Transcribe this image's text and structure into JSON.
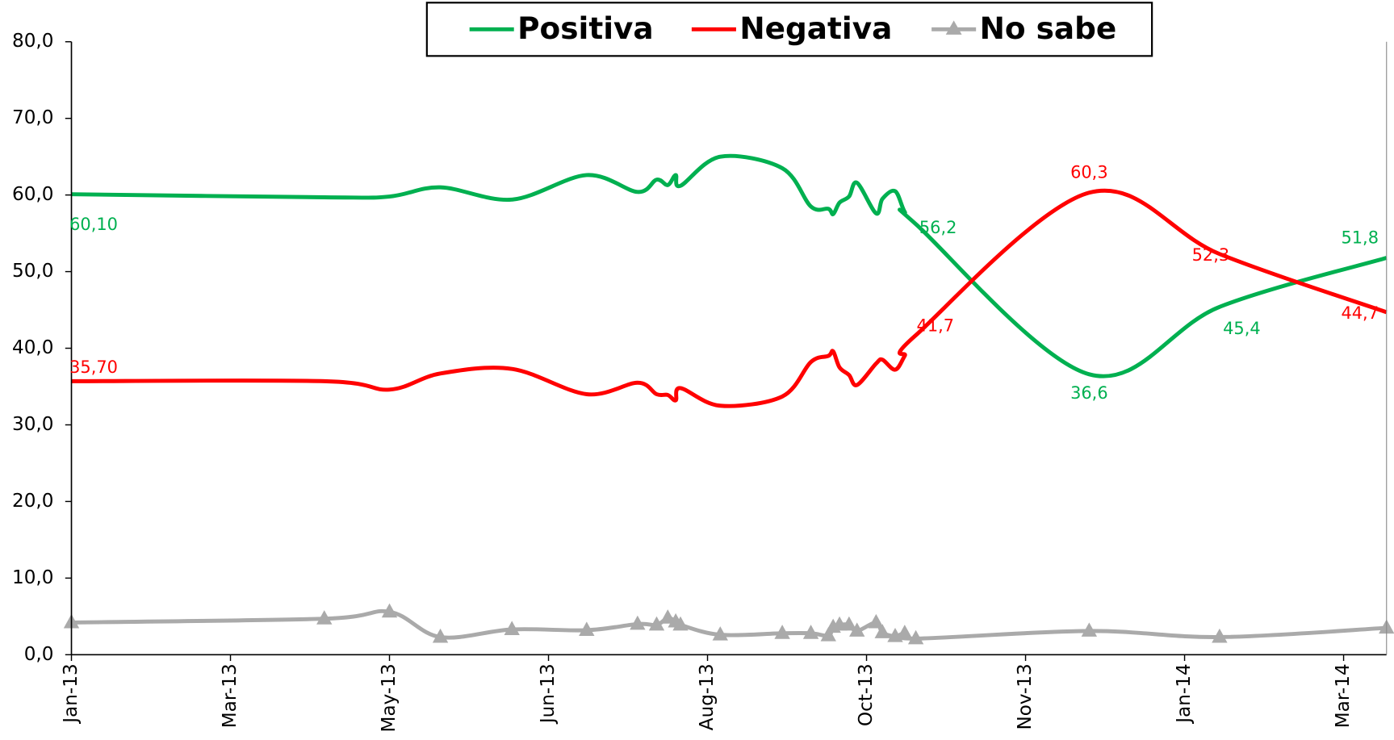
{
  "chart_data": {
    "type": "line",
    "x": [
      0,
      1.59,
      2.0,
      2.32,
      2.77,
      3.24,
      3.56,
      3.68,
      3.75,
      3.8,
      3.83,
      4.08,
      4.47,
      4.65,
      4.76,
      4.79,
      4.83,
      4.89,
      4.94,
      5.06,
      5.1,
      5.18,
      5.24,
      5.31,
      6.4,
      7.22,
      8.27
    ],
    "series": [
      {
        "name": "Positiva",
        "color": "#00b050",
        "markers": false,
        "values": [
          60.1,
          59.7,
          59.8,
          61.0,
          59.4,
          62.6,
          60.4,
          62.0,
          61.3,
          62.6,
          61.2,
          65.0,
          63.5,
          58.5,
          58.2,
          57.5,
          59.0,
          59.8,
          61.6,
          57.6,
          59.5,
          60.5,
          57.8,
          56.2,
          36.6,
          45.4,
          51.8
        ],
        "value_labels": [
          "60,10",
          null,
          null,
          null,
          null,
          null,
          null,
          null,
          null,
          null,
          null,
          null,
          null,
          null,
          null,
          null,
          null,
          null,
          null,
          null,
          null,
          null,
          null,
          "56,2",
          "36,6",
          "45,4",
          "51,8"
        ]
      },
      {
        "name": "Negativa",
        "color": "#ff0000",
        "markers": false,
        "values": [
          35.7,
          35.7,
          34.6,
          36.7,
          37.3,
          34.0,
          35.5,
          34.0,
          33.9,
          33.2,
          34.8,
          32.5,
          33.7,
          38.2,
          39.0,
          39.6,
          37.5,
          36.5,
          35.2,
          38.0,
          38.5,
          37.2,
          39.0,
          41.7,
          60.3,
          52.3,
          44.7
        ],
        "value_labels": [
          "35,70",
          null,
          null,
          null,
          null,
          null,
          null,
          null,
          null,
          null,
          null,
          null,
          null,
          null,
          null,
          null,
          null,
          null,
          null,
          null,
          null,
          null,
          null,
          "41,7",
          "60,3",
          "52,3",
          "44,7"
        ]
      },
      {
        "name": "No sabe",
        "color": "#aaaaaa",
        "markers": true,
        "values": [
          4.2,
          4.7,
          5.6,
          2.3,
          3.3,
          3.2,
          4.0,
          3.9,
          4.8,
          4.3,
          3.9,
          2.6,
          2.8,
          2.8,
          2.5,
          3.6,
          3.9,
          3.9,
          3.1,
          4.2,
          2.9,
          2.4,
          2.8,
          2.1,
          3.1,
          2.3,
          3.5
        ]
      }
    ],
    "xlim": [
      0,
      8.27
    ],
    "xticks": [
      {
        "value": 0,
        "label": "Jan-13"
      },
      {
        "value": 1,
        "label": "Mar-13"
      },
      {
        "value": 2,
        "label": "May-13"
      },
      {
        "value": 3,
        "label": "Jun-13"
      },
      {
        "value": 4,
        "label": "Aug-13"
      },
      {
        "value": 5,
        "label": "Oct-13"
      },
      {
        "value": 6,
        "label": "Nov-13"
      },
      {
        "value": 7,
        "label": "Jan-14"
      },
      {
        "value": 8,
        "label": "Mar-14"
      }
    ],
    "ylim": [
      0,
      80
    ],
    "yticks": [
      {
        "value": 0,
        "label": "0,0"
      },
      {
        "value": 10,
        "label": "10,0"
      },
      {
        "value": 20,
        "label": "20,0"
      },
      {
        "value": 30,
        "label": "30,0"
      },
      {
        "value": 40,
        "label": "40,0"
      },
      {
        "value": 50,
        "label": "50,0"
      },
      {
        "value": 60,
        "label": "60,0"
      },
      {
        "value": 70,
        "label": "70,0"
      },
      {
        "value": 80,
        "label": "80,0"
      }
    ],
    "grid": true,
    "smooth": true,
    "legend": "top"
  }
}
